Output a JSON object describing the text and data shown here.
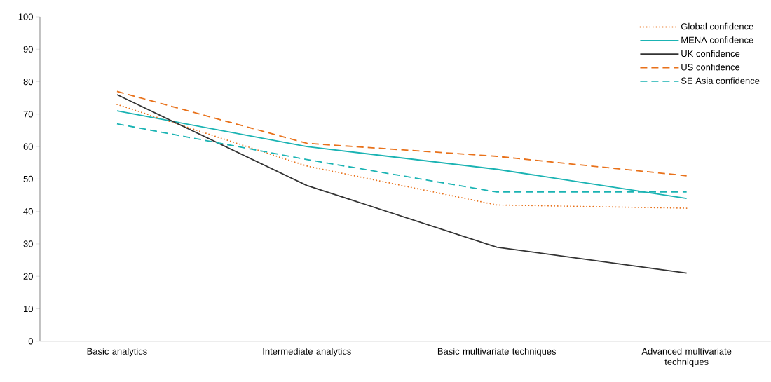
{
  "chart_data": {
    "type": "line",
    "categories": [
      "Basic analytics",
      "Intermediate analytics",
      "Basic multivariate techniques",
      "Advanced multivariate techniques"
    ],
    "series": [
      {
        "name": "Global confidence",
        "color": "#e8711a",
        "line_style": "dotted",
        "values": [
          73,
          54,
          42,
          41
        ]
      },
      {
        "name": "MENA confidence",
        "color": "#1ab3b3",
        "line_style": "solid",
        "values": [
          71,
          60,
          53,
          44
        ]
      },
      {
        "name": "UK confidence",
        "color": "#333333",
        "line_style": "solid",
        "values": [
          76,
          48,
          29,
          21
        ]
      },
      {
        "name": "US confidence",
        "color": "#e8711a",
        "line_style": "dashed",
        "values": [
          77,
          61,
          57,
          51
        ]
      },
      {
        "name": "SE Asia confidence",
        "color": "#1ab3b3",
        "line_style": "dashed",
        "values": [
          67,
          56,
          46,
          46
        ]
      }
    ],
    "ylim": [
      0,
      100
    ],
    "yticks": [
      0,
      10,
      20,
      30,
      40,
      50,
      60,
      70,
      80,
      90,
      100
    ],
    "legend": "top right"
  }
}
